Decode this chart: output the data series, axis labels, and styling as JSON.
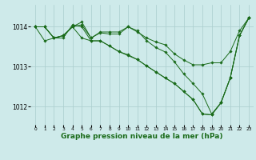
{
  "bg_color": "#ceeaea",
  "grid_color": "#aacccc",
  "line_color": "#1a6b1a",
  "marker_color": "#1a6b1a",
  "xlabel": "Graphe pression niveau de la mer (hPa)",
  "xlabel_fontsize": 6.5,
  "ylim": [
    1011.55,
    1014.55
  ],
  "xlim": [
    -0.5,
    23.5
  ],
  "yticks": [
    1012,
    1013,
    1014
  ],
  "xticks": [
    0,
    1,
    2,
    3,
    4,
    5,
    6,
    7,
    8,
    9,
    10,
    11,
    12,
    13,
    14,
    15,
    16,
    17,
    18,
    19,
    20,
    21,
    22,
    23
  ],
  "series": [
    [
      1014.0,
      1014.0,
      1013.72,
      1013.78,
      1014.0,
      1014.05,
      1013.72,
      1013.87,
      1013.87,
      1013.87,
      1014.0,
      1013.87,
      1013.72,
      1013.62,
      1013.55,
      1013.32,
      1013.17,
      1013.05,
      1013.05,
      1013.1,
      1013.1,
      1013.38,
      1013.9,
      1014.22
    ],
    [
      1014.0,
      1014.0,
      1013.72,
      1013.78,
      1014.0,
      1014.12,
      1013.72,
      1013.85,
      1013.82,
      1013.82,
      1014.0,
      1013.9,
      1013.65,
      1013.48,
      1013.37,
      1013.12,
      1012.82,
      1012.58,
      1012.32,
      1011.82,
      1012.1,
      1012.72,
      1013.78,
      1014.22
    ],
    [
      1014.0,
      1014.0,
      1013.72,
      1013.72,
      1014.05,
      1014.0,
      1013.65,
      1013.65,
      1013.52,
      1013.38,
      1013.3,
      1013.18,
      1013.02,
      1012.87,
      1012.72,
      1012.58,
      1012.38,
      1012.18,
      1011.82,
      1011.8,
      1012.1,
      1012.72,
      1013.78,
      1014.22
    ],
    [
      1014.0,
      1013.65,
      1013.72,
      1013.78,
      1014.0,
      1013.72,
      1013.65,
      1013.65,
      1013.52,
      1013.38,
      1013.28,
      1013.18,
      1013.02,
      1012.87,
      1012.72,
      1012.58,
      1012.38,
      1012.18,
      1011.82,
      1011.8,
      1012.1,
      1012.72,
      1013.78,
      1014.22
    ]
  ]
}
